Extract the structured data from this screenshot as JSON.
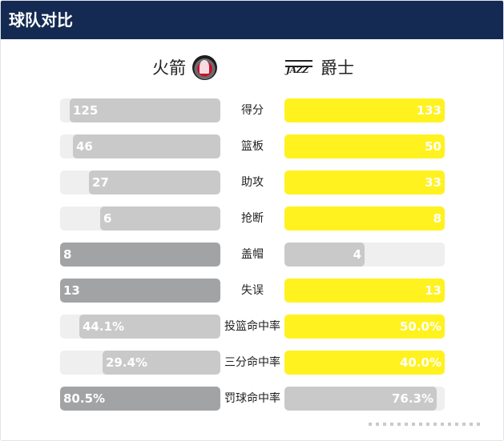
{
  "header": {
    "title": "球队对比"
  },
  "teams": {
    "home": {
      "name": "火箭",
      "logo_icon": "rockets-logo-icon"
    },
    "away": {
      "name": "爵士",
      "logo_icon": "jazz-logo-icon",
      "logo_text": "JAZZ"
    }
  },
  "colors": {
    "leader_home": "#a2a3a5",
    "leader_away": "#fff21f",
    "loser": "#c9c9c9",
    "track": "#efefef",
    "header": "#142a53"
  },
  "stats": [
    {
      "label": "得分",
      "home": "125",
      "away": "133",
      "home_ratio": 0.94,
      "away_ratio": 1.0,
      "leader": "away"
    },
    {
      "label": "篮板",
      "home": "46",
      "away": "50",
      "home_ratio": 0.92,
      "away_ratio": 1.0,
      "leader": "away"
    },
    {
      "label": "助攻",
      "home": "27",
      "away": "33",
      "home_ratio": 0.82,
      "away_ratio": 1.0,
      "leader": "away"
    },
    {
      "label": "抢断",
      "home": "6",
      "away": "8",
      "home_ratio": 0.75,
      "away_ratio": 1.0,
      "leader": "away"
    },
    {
      "label": "盖帽",
      "home": "8",
      "away": "4",
      "home_ratio": 1.0,
      "away_ratio": 0.5,
      "leader": "home"
    },
    {
      "label": "失误",
      "home": "13",
      "away": "13",
      "home_ratio": 1.0,
      "away_ratio": 1.0,
      "leader": "both"
    },
    {
      "label": "投篮命中率",
      "home": "44.1%",
      "away": "50.0%",
      "home_ratio": 0.88,
      "away_ratio": 1.0,
      "leader": "away"
    },
    {
      "label": "三分命中率",
      "home": "29.4%",
      "away": "40.0%",
      "home_ratio": 0.735,
      "away_ratio": 1.0,
      "leader": "away"
    },
    {
      "label": "罚球命中率",
      "home": "80.5%",
      "away": "76.3%",
      "home_ratio": 1.0,
      "away_ratio": 0.95,
      "leader": "home"
    }
  ]
}
